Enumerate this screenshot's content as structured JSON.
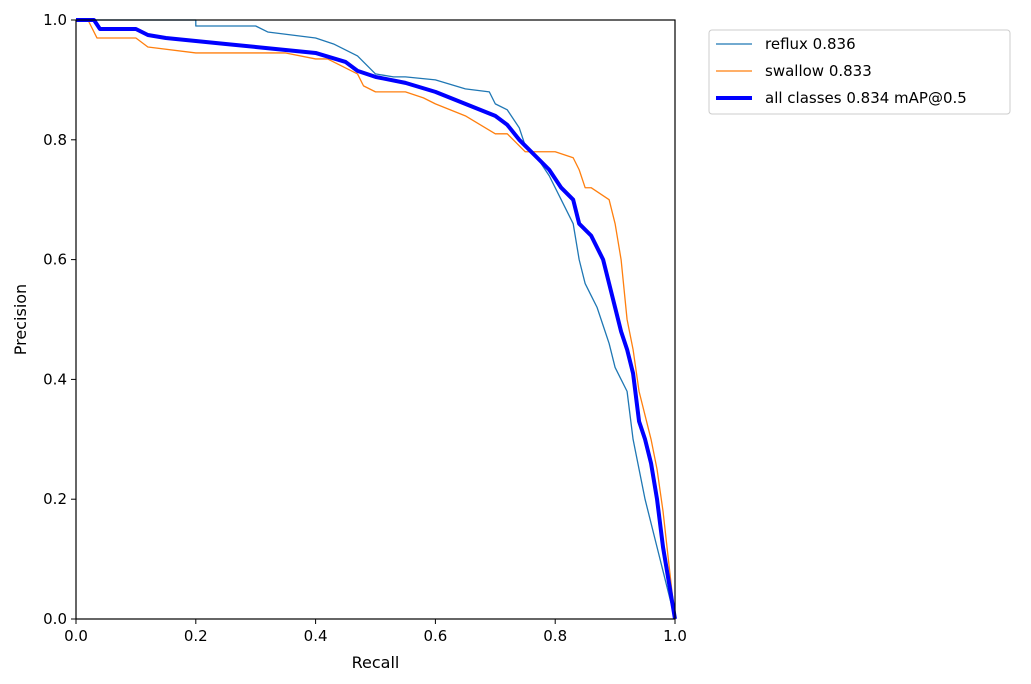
{
  "chart_data": {
    "type": "line",
    "title": "",
    "xlabel": "Recall",
    "ylabel": "Precision",
    "xlim": [
      0.0,
      1.0
    ],
    "ylim": [
      0.0,
      1.0
    ],
    "x_ticks": [
      "0.0",
      "0.2",
      "0.4",
      "0.6",
      "0.8",
      "1.0"
    ],
    "y_ticks": [
      "0.0",
      "0.2",
      "0.4",
      "0.6",
      "0.8",
      "1.0"
    ],
    "grid": false,
    "legend_position": "outside-top-right",
    "series": [
      {
        "name": "reflux 0.836",
        "color": "#1f77b4",
        "line_width": "thin",
        "x": [
          0.0,
          0.2,
          0.2,
          0.3,
          0.32,
          0.4,
          0.43,
          0.45,
          0.47,
          0.5,
          0.53,
          0.55,
          0.6,
          0.65,
          0.69,
          0.7,
          0.72,
          0.74,
          0.75,
          0.77,
          0.79,
          0.81,
          0.83,
          0.84,
          0.85,
          0.86,
          0.87,
          0.88,
          0.89,
          0.9,
          0.91,
          0.92,
          0.93,
          0.94,
          0.95,
          0.96,
          0.97,
          0.98,
          1.0
        ],
        "y": [
          1.0,
          1.0,
          0.99,
          0.99,
          0.98,
          0.97,
          0.96,
          0.95,
          0.94,
          0.91,
          0.905,
          0.905,
          0.9,
          0.885,
          0.88,
          0.86,
          0.85,
          0.82,
          0.79,
          0.77,
          0.74,
          0.7,
          0.66,
          0.6,
          0.56,
          0.54,
          0.52,
          0.49,
          0.46,
          0.42,
          0.4,
          0.38,
          0.3,
          0.25,
          0.2,
          0.16,
          0.12,
          0.08,
          0.0
        ]
      },
      {
        "name": "swallow 0.833",
        "color": "#ff7f0e",
        "line_width": "thin",
        "x": [
          0.0,
          0.02,
          0.035,
          0.1,
          0.12,
          0.2,
          0.35,
          0.4,
          0.42,
          0.47,
          0.48,
          0.5,
          0.55,
          0.58,
          0.6,
          0.65,
          0.7,
          0.72,
          0.73,
          0.74,
          0.75,
          0.76,
          0.78,
          0.8,
          0.83,
          0.84,
          0.85,
          0.86,
          0.89,
          0.9,
          0.91,
          0.92,
          0.93,
          0.94,
          0.95,
          0.96,
          0.97,
          0.98,
          1.0
        ],
        "y": [
          1.0,
          1.0,
          0.97,
          0.97,
          0.955,
          0.945,
          0.945,
          0.935,
          0.935,
          0.91,
          0.89,
          0.88,
          0.88,
          0.87,
          0.86,
          0.84,
          0.81,
          0.81,
          0.8,
          0.79,
          0.78,
          0.78,
          0.78,
          0.78,
          0.77,
          0.75,
          0.72,
          0.72,
          0.7,
          0.66,
          0.6,
          0.5,
          0.45,
          0.38,
          0.34,
          0.3,
          0.25,
          0.18,
          0.0
        ]
      },
      {
        "name": "all classes 0.834 mAP@0.5",
        "color": "#0000ff",
        "line_width": "thick",
        "x": [
          0.0,
          0.03,
          0.04,
          0.1,
          0.12,
          0.15,
          0.2,
          0.25,
          0.3,
          0.35,
          0.4,
          0.45,
          0.47,
          0.5,
          0.55,
          0.6,
          0.65,
          0.7,
          0.72,
          0.74,
          0.75,
          0.77,
          0.79,
          0.81,
          0.83,
          0.84,
          0.86,
          0.88,
          0.89,
          0.9,
          0.91,
          0.92,
          0.93,
          0.94,
          0.95,
          0.96,
          0.97,
          0.98,
          1.0
        ],
        "y": [
          1.0,
          1.0,
          0.985,
          0.985,
          0.975,
          0.97,
          0.965,
          0.96,
          0.955,
          0.95,
          0.945,
          0.93,
          0.915,
          0.905,
          0.895,
          0.88,
          0.86,
          0.84,
          0.825,
          0.8,
          0.79,
          0.77,
          0.75,
          0.72,
          0.7,
          0.66,
          0.64,
          0.6,
          0.56,
          0.52,
          0.48,
          0.45,
          0.41,
          0.33,
          0.3,
          0.26,
          0.2,
          0.12,
          0.0
        ]
      }
    ]
  }
}
